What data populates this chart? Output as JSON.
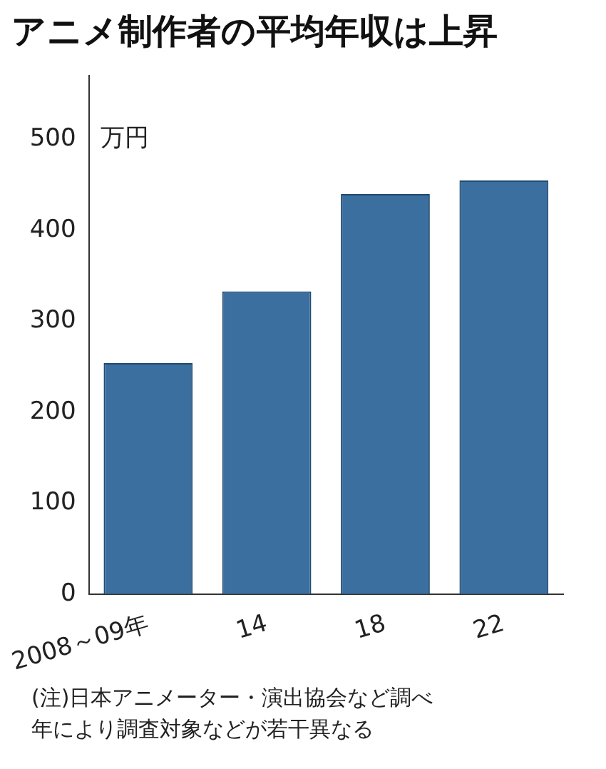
{
  "chart_data": {
    "type": "bar",
    "title": "アニメ制作者の平均年収は上昇",
    "ylabel": "万円",
    "categories": [
      "2008～09年",
      "14",
      "18",
      "22"
    ],
    "values": [
      254,
      333,
      440,
      455
    ],
    "color": "#3a6f9f",
    "ylim": [
      0,
      570
    ],
    "yticks": [
      0,
      100,
      200,
      300,
      400,
      500
    ],
    "grid": false,
    "legend": false,
    "annotations": [
      "(注)日本アニメーター・演出協会など調べ",
      "年により調査対象などが若干異なる"
    ]
  }
}
